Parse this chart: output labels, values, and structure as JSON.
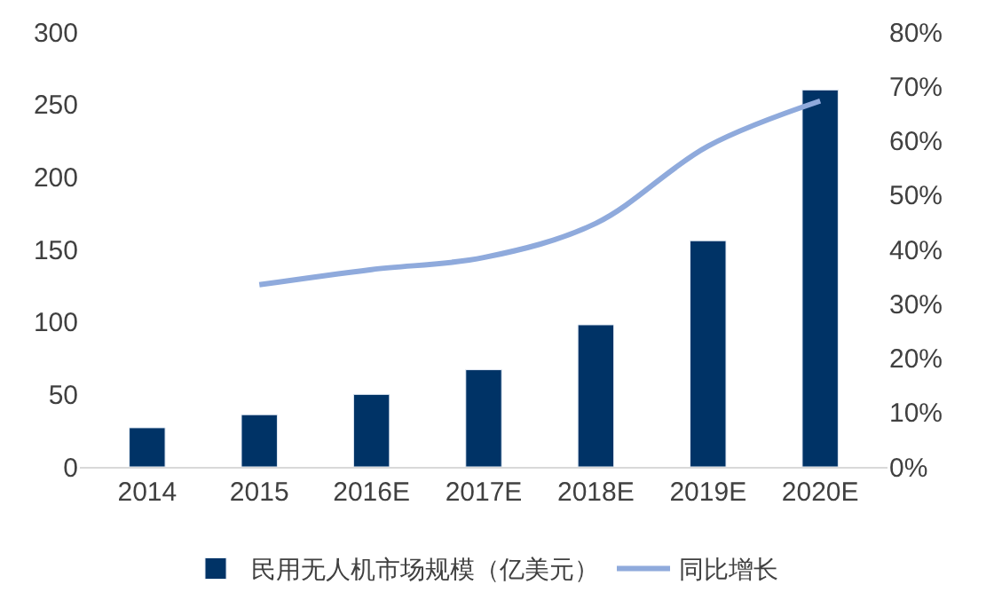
{
  "chart_data": {
    "type": "bar",
    "categories": [
      "2014",
      "2015",
      "2016E",
      "2017E",
      "2018E",
      "2019E",
      "2020E"
    ],
    "series": [
      {
        "name": "民用无人机市场规模（亿美元）",
        "color": "#003366",
        "values": [
          27,
          36,
          50,
          67,
          98,
          156,
          260
        ]
      },
      {
        "name": "同比增长",
        "type": "line",
        "axis": "y2",
        "color": "#8faadc",
        "values": [
          null,
          33.5,
          36.3,
          38.5,
          44.8,
          59,
          67.3
        ]
      }
    ],
    "ylim": [
      0,
      300
    ],
    "yticks": [
      0,
      50,
      100,
      150,
      200,
      250,
      300
    ],
    "y2lim": [
      0,
      80
    ],
    "y2ticks": [
      {
        "value": 0,
        "label": "0%"
      },
      {
        "value": 10,
        "label": "10%"
      },
      {
        "value": 20,
        "label": "20%"
      },
      {
        "value": 30,
        "label": "30%"
      },
      {
        "value": 40,
        "label": "40%"
      },
      {
        "value": 50,
        "label": "50%"
      },
      {
        "value": 60,
        "label": "60%"
      },
      {
        "value": 70,
        "label": "70%"
      },
      {
        "value": 80,
        "label": "80%"
      }
    ],
    "legend": "bottom",
    "marker": "none"
  }
}
